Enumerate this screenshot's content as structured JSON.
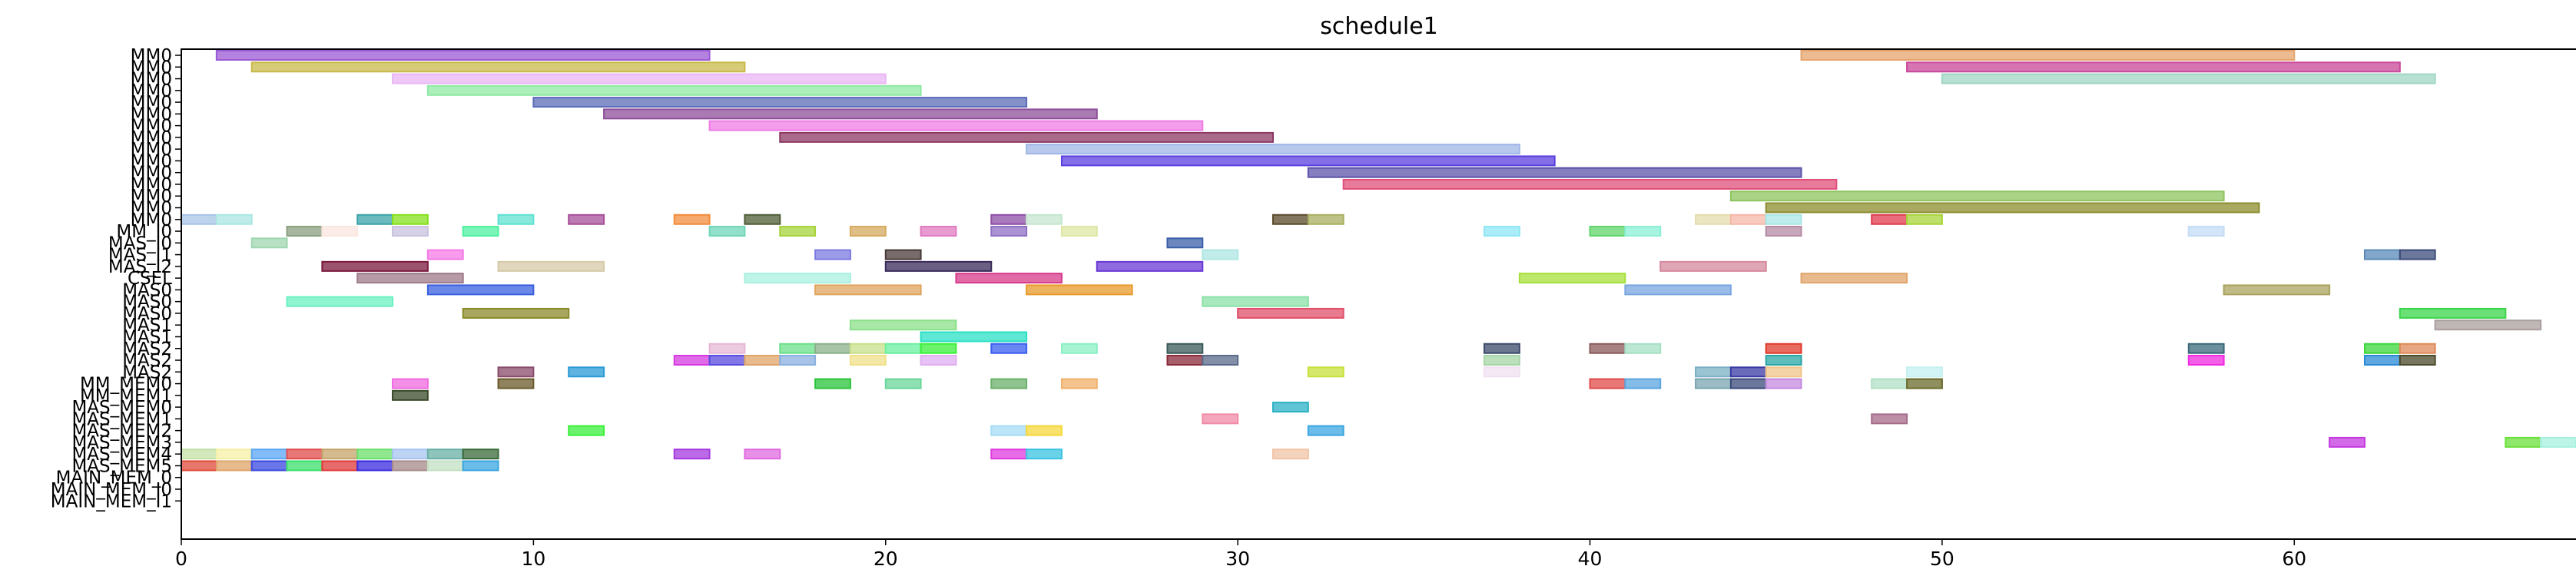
{
  "chart_data": {
    "type": "gantt",
    "title": "schedule1",
    "xlabel": "",
    "ylabel": "",
    "xlim": [
      0,
      68
    ],
    "x_ticks": [
      0,
      10,
      20,
      30,
      40,
      50,
      60
    ],
    "grid": false,
    "rows": [
      "MM0",
      "MM0",
      "MM0",
      "MM0",
      "MM0",
      "MM0",
      "MM0",
      "MM0",
      "MM0",
      "MM0",
      "MM0",
      "MM0",
      "MM0",
      "MM0",
      "MM0",
      "MM_I0",
      "MAS_I0",
      "MAS_I1",
      "MAS_I2",
      "CSEL",
      "MAS0",
      "MAS0",
      "MAS0",
      "MAS1",
      "MAS1",
      "MAS2",
      "MAS2",
      "MAS2",
      "MM_MEM0",
      "MM_MEM1",
      "MAS_MEM0",
      "MAS_MEM1",
      "MAS_MEM2",
      "MAS_MEM3",
      "MAS_MEM4",
      "MAS_MEM5",
      "MAIN_MEM_0",
      "MAIN_MEM_I0",
      "MAIN_MEM_I1"
    ],
    "tasks": [
      [
        0,
        1,
        15,
        "#9b59d6"
      ],
      [
        0,
        46,
        60,
        "#e6a46c"
      ],
      [
        1,
        2,
        16,
        "#c8b94a"
      ],
      [
        1,
        49,
        63,
        "#c9479a"
      ],
      [
        2,
        6,
        20,
        "#e9b6f5"
      ],
      [
        2,
        50,
        64,
        "#9fd6c4"
      ],
      [
        3,
        7,
        21,
        "#8fe9a4"
      ],
      [
        4,
        10,
        24,
        "#5b6bb8"
      ],
      [
        5,
        12,
        26,
        "#8e4f9a"
      ],
      [
        6,
        15,
        29,
        "#ef7ce6"
      ],
      [
        7,
        17,
        31,
        "#8d3a63"
      ],
      [
        8,
        24,
        38,
        "#9fb5e6"
      ],
      [
        9,
        25,
        39,
        "#5b3fe0"
      ],
      [
        10,
        32,
        46,
        "#5c53a9"
      ],
      [
        11,
        33,
        47,
        "#e04f7a"
      ],
      [
        12,
        44,
        58,
        "#8fc45f"
      ],
      [
        13,
        45,
        59,
        "#8c8c2e"
      ],
      [
        14,
        0,
        1,
        "#a8c4e6"
      ],
      [
        14,
        1,
        2,
        "#a9e6e3"
      ],
      [
        14,
        5,
        6,
        "#3aa3a8"
      ],
      [
        14,
        6,
        7,
        "#86e01c"
      ],
      [
        14,
        9,
        10,
        "#5fe1d0"
      ],
      [
        14,
        11,
        12,
        "#a64f98"
      ],
      [
        14,
        14,
        15,
        "#f28c3c"
      ],
      [
        14,
        16,
        17,
        "#4f5e36"
      ],
      [
        14,
        23,
        24,
        "#8e4fa6"
      ],
      [
        14,
        24,
        25,
        "#c5e6d0"
      ],
      [
        14,
        31,
        32,
        "#5a4a2a"
      ],
      [
        14,
        32,
        33,
        "#a8ae5e"
      ],
      [
        14,
        43,
        44,
        "#e6dcae"
      ],
      [
        14,
        44,
        45,
        "#f5b8a8"
      ],
      [
        14,
        45,
        46,
        "#a9e6e6"
      ],
      [
        14,
        48,
        49,
        "#e03b4f"
      ],
      [
        14,
        49,
        50,
        "#a8d43a"
      ],
      [
        15,
        3,
        4,
        "#8a9e7e"
      ],
      [
        15,
        4,
        5,
        "#fbe6e0"
      ],
      [
        15,
        6,
        7,
        "#c9c2e0"
      ],
      [
        15,
        8,
        9,
        "#4ff0a0"
      ],
      [
        15,
        15,
        16,
        "#6fd6b8"
      ],
      [
        15,
        17,
        18,
        "#a6d43a"
      ],
      [
        15,
        19,
        20,
        "#d6a95e"
      ],
      [
        15,
        21,
        22,
        "#e07ac0"
      ],
      [
        15,
        23,
        24,
        "#8f6fc4"
      ],
      [
        15,
        25,
        26,
        "#dfe6a4"
      ],
      [
        15,
        37,
        38,
        "#8ee6f5"
      ],
      [
        15,
        40,
        41,
        "#5fd46a"
      ],
      [
        15,
        41,
        42,
        "#8af0d6"
      ],
      [
        15,
        45,
        46,
        "#b58aa4"
      ],
      [
        15,
        57,
        58,
        "#c4dcf5"
      ],
      [
        16,
        2,
        3,
        "#9fd6b0"
      ],
      [
        16,
        28,
        29,
        "#3a5fa8"
      ],
      [
        17,
        7,
        8,
        "#f57ae6"
      ],
      [
        17,
        18,
        19,
        "#7a7ae0"
      ],
      [
        17,
        20,
        21,
        "#4a3a3a"
      ],
      [
        17,
        29,
        30,
        "#aee6e3"
      ],
      [
        17,
        62,
        63,
        "#5a8ab8"
      ],
      [
        17,
        63,
        64,
        "#3a4a7a"
      ],
      [
        18,
        4,
        7,
        "#7a1a3e"
      ],
      [
        18,
        9,
        12,
        "#d6caa8"
      ],
      [
        18,
        20,
        23,
        "#3a2a5a"
      ],
      [
        18,
        26,
        29,
        "#6a3ad6"
      ],
      [
        18,
        42,
        45,
        "#d68a9e"
      ],
      [
        19,
        5,
        8,
        "#9e7a8a"
      ],
      [
        19,
        16,
        19,
        "#a9f0e0"
      ],
      [
        19,
        22,
        25,
        "#d63a8a"
      ],
      [
        19,
        38,
        41,
        "#a6e03a"
      ],
      [
        19,
        46,
        49,
        "#e0a46a"
      ],
      [
        20,
        7,
        10,
        "#3a5fe0"
      ],
      [
        20,
        18,
        21,
        "#e0a45e"
      ],
      [
        20,
        24,
        27,
        "#e89a2a"
      ],
      [
        20,
        41,
        44,
        "#7aa6e0"
      ],
      [
        20,
        58,
        61,
        "#aaa35e"
      ],
      [
        21,
        3,
        6,
        "#6af0c0"
      ],
      [
        21,
        29,
        32,
        "#8ae0a6"
      ],
      [
        22,
        8,
        11,
        "#8a8a2a"
      ],
      [
        22,
        30,
        33,
        "#e04f6a"
      ],
      [
        22,
        63,
        66,
        "#3ad64a"
      ],
      [
        23,
        19,
        22,
        "#8ae08a"
      ],
      [
        23,
        64,
        67,
        "#aa9e9e"
      ],
      [
        24,
        21,
        24,
        "#2ae0c4"
      ],
      [
        25,
        15,
        16,
        "#e6b8d6"
      ],
      [
        25,
        17,
        18,
        "#6ae08a"
      ],
      [
        25,
        18,
        19,
        "#8ab08a"
      ],
      [
        25,
        19,
        20,
        "#c8e08a"
      ],
      [
        25,
        20,
        21,
        "#6af0a0"
      ],
      [
        25,
        21,
        22,
        "#3af03a"
      ],
      [
        25,
        23,
        24,
        "#3a5ff0"
      ],
      [
        25,
        25,
        26,
        "#8af0c4"
      ],
      [
        25,
        28,
        29,
        "#3a5a5a"
      ],
      [
        25,
        37,
        38,
        "#3a4a6a"
      ],
      [
        25,
        40,
        41,
        "#8a5a5a"
      ],
      [
        25,
        41,
        42,
        "#a6e0c4"
      ],
      [
        25,
        45,
        46,
        "#e03a2a"
      ],
      [
        25,
        57,
        58,
        "#3a6a7a"
      ],
      [
        25,
        62,
        63,
        "#3ad63a"
      ],
      [
        25,
        63,
        64,
        "#e08a5a"
      ],
      [
        26,
        14,
        15,
        "#d63ae0"
      ],
      [
        26,
        15,
        16,
        "#5a4ae0"
      ],
      [
        26,
        16,
        17,
        "#e0a46a"
      ],
      [
        26,
        17,
        18,
        "#8ab0e0"
      ],
      [
        26,
        19,
        20,
        "#f0e08a"
      ],
      [
        26,
        21,
        22,
        "#e0aef0"
      ],
      [
        26,
        28,
        29,
        "#8a2a3a"
      ],
      [
        26,
        29,
        30,
        "#5a6a8a"
      ],
      [
        26,
        37,
        38,
        "#a6d6a6"
      ],
      [
        26,
        45,
        46,
        "#2aa6a6"
      ],
      [
        26,
        57,
        58,
        "#f02ae0"
      ],
      [
        26,
        62,
        63,
        "#2a8ad6"
      ],
      [
        26,
        63,
        64,
        "#4a4a2a"
      ],
      [
        27,
        9,
        10,
        "#8a4a6a"
      ],
      [
        27,
        11,
        12,
        "#2a9ad6"
      ],
      [
        27,
        32,
        33,
        "#c8e03a"
      ],
      [
        27,
        37,
        38,
        "#f0e0f0"
      ],
      [
        27,
        43,
        44,
        "#7ab0c4"
      ],
      [
        27,
        44,
        45,
        "#3a3aa6"
      ],
      [
        27,
        45,
        46,
        "#f0c48a"
      ],
      [
        27,
        49,
        50,
        "#c4f0f0"
      ],
      [
        28,
        6,
        7,
        "#f06ae0"
      ],
      [
        28,
        9,
        10,
        "#6a5a2a"
      ],
      [
        28,
        18,
        19,
        "#2ac43a"
      ],
      [
        28,
        20,
        21,
        "#6ad69a"
      ],
      [
        28,
        23,
        24,
        "#6ab06a"
      ],
      [
        28,
        25,
        26,
        "#f0b06a"
      ],
      [
        28,
        40,
        41,
        "#e04a4a"
      ],
      [
        28,
        41,
        42,
        "#5aa6e0"
      ],
      [
        28,
        43,
        44,
        "#7aa6b0"
      ],
      [
        28,
        44,
        45,
        "#3a4a7a"
      ],
      [
        28,
        45,
        46,
        "#c48ae0"
      ],
      [
        28,
        48,
        49,
        "#b0e0c4"
      ],
      [
        28,
        49,
        50,
        "#6a6a2a"
      ],
      [
        29,
        6,
        7,
        "#3a4a2a"
      ],
      [
        30,
        31,
        32,
        "#2ab0c4"
      ],
      [
        31,
        29,
        30,
        "#f08aa6"
      ],
      [
        31,
        48,
        49,
        "#a66a8a"
      ],
      [
        32,
        11,
        12,
        "#3af03a"
      ],
      [
        32,
        23,
        24,
        "#a6dcf5"
      ],
      [
        32,
        24,
        25,
        "#f5d83a"
      ],
      [
        32,
        32,
        33,
        "#3aa6e0"
      ],
      [
        33,
        61,
        62,
        "#c43ae0"
      ],
      [
        33,
        66,
        67,
        "#6ae03a"
      ],
      [
        33,
        67,
        68,
        "#a6f0e0"
      ],
      [
        34,
        0,
        1,
        "#c4e0a6"
      ],
      [
        34,
        1,
        2,
        "#f5f0a6"
      ],
      [
        34,
        2,
        3,
        "#5aa6f5"
      ],
      [
        34,
        3,
        4,
        "#e04a4a"
      ],
      [
        34,
        4,
        5,
        "#c4a46a"
      ],
      [
        34,
        5,
        6,
        "#6ae06a"
      ],
      [
        34,
        6,
        7,
        "#a6c4f0"
      ],
      [
        34,
        7,
        8,
        "#6ab0a6"
      ],
      [
        34,
        8,
        9,
        "#3a6a3a"
      ],
      [
        34,
        14,
        15,
        "#a63ae0"
      ],
      [
        34,
        16,
        17,
        "#e06ae0"
      ],
      [
        34,
        23,
        24,
        "#e03ae0"
      ],
      [
        34,
        24,
        25,
        "#3ac4e0"
      ],
      [
        34,
        31,
        32,
        "#f0c4a6"
      ],
      [
        35,
        0,
        1,
        "#e04a3a"
      ],
      [
        35,
        1,
        2,
        "#e0a46a"
      ],
      [
        35,
        2,
        3,
        "#3a4ae0"
      ],
      [
        35,
        3,
        4,
        "#3ae06a"
      ],
      [
        35,
        4,
        5,
        "#e03a3a"
      ],
      [
        35,
        5,
        6,
        "#3a2ae0"
      ],
      [
        35,
        6,
        7,
        "#a68a8a"
      ],
      [
        35,
        7,
        8,
        "#c4e0c4"
      ],
      [
        35,
        8,
        9,
        "#3aa6e0"
      ]
    ]
  }
}
